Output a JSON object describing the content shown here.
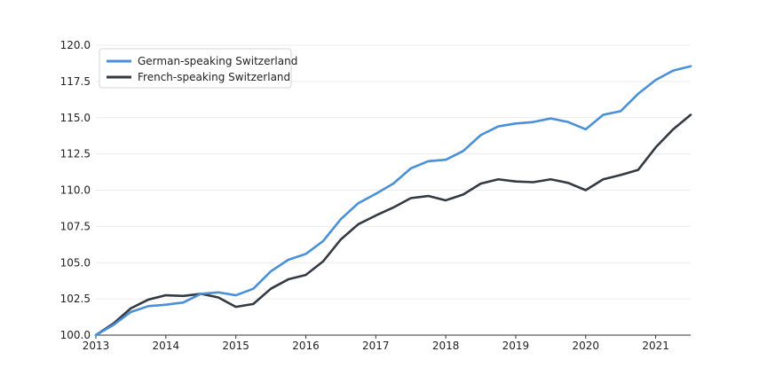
{
  "chart_data": {
    "type": "line",
    "title": "",
    "xlabel": "",
    "ylabel": "",
    "xlim": [
      2013.0,
      2021.5
    ],
    "ylim": [
      100.0,
      120.0
    ],
    "x_ticks": [
      2013,
      2014,
      2015,
      2016,
      2017,
      2018,
      2019,
      2020,
      2021
    ],
    "x_tick_labels": [
      "2013",
      "2014",
      "2015",
      "2016",
      "2017",
      "2018",
      "2019",
      "2020",
      "2021"
    ],
    "y_ticks": [
      100.0,
      102.5,
      105.0,
      107.5,
      110.0,
      112.5,
      115.0,
      117.5,
      120.0
    ],
    "y_tick_labels": [
      "100.0",
      "102.5",
      "105.0",
      "107.5",
      "110.0",
      "112.5",
      "115.0",
      "117.5",
      "120.0"
    ],
    "grid": "horizontal",
    "legend_position": "top-left",
    "x": [
      2013.0,
      2013.25,
      2013.5,
      2013.75,
      2014.0,
      2014.25,
      2014.5,
      2014.75,
      2015.0,
      2015.25,
      2015.5,
      2015.75,
      2016.0,
      2016.25,
      2016.5,
      2016.75,
      2017.0,
      2017.25,
      2017.5,
      2017.75,
      2018.0,
      2018.25,
      2018.5,
      2018.75,
      2019.0,
      2019.25,
      2019.5,
      2019.75,
      2020.0,
      2020.25,
      2020.5,
      2020.75,
      2021.0,
      2021.25,
      2021.5
    ],
    "series": [
      {
        "name": "German-speaking Switzerland",
        "color": "#4a90d9",
        "values": [
          100.0,
          100.7,
          101.6,
          102.0,
          102.1,
          102.25,
          102.85,
          102.95,
          102.75,
          103.2,
          104.4,
          105.2,
          105.6,
          106.5,
          108.0,
          109.1,
          109.75,
          110.45,
          111.5,
          112.0,
          112.1,
          112.7,
          113.8,
          114.4,
          114.6,
          114.7,
          114.95,
          114.7,
          114.2,
          115.2,
          115.45,
          116.65,
          117.6,
          118.25,
          118.55
        ]
      },
      {
        "name": "French-speaking Switzerland",
        "color": "#333a42",
        "values": [
          100.0,
          100.8,
          101.85,
          102.45,
          102.75,
          102.7,
          102.85,
          102.6,
          101.95,
          102.15,
          103.2,
          103.85,
          104.15,
          105.1,
          106.6,
          107.65,
          108.25,
          108.8,
          109.45,
          109.6,
          109.3,
          109.7,
          110.45,
          110.75,
          110.6,
          110.55,
          110.75,
          110.5,
          110.0,
          110.75,
          111.05,
          111.4,
          112.95,
          114.2,
          115.2
        ]
      }
    ]
  }
}
